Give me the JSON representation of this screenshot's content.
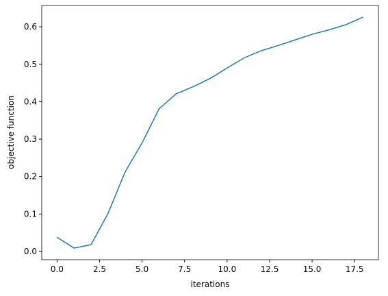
{
  "chart_data": {
    "type": "line",
    "xlabel": "iterations",
    "ylabel": "objective function",
    "x": [
      0,
      1,
      2,
      3,
      4,
      5,
      6,
      7,
      8,
      9,
      10,
      11,
      12,
      13,
      14,
      15,
      16,
      17,
      18
    ],
    "series": [
      {
        "color": "#1f77b4",
        "values": [
          0.038,
          0.009,
          0.018,
          0.102,
          0.212,
          0.29,
          0.381,
          0.421,
          0.44,
          0.462,
          0.49,
          0.517,
          0.536,
          0.55,
          0.565,
          0.58,
          0.592,
          0.606,
          0.626
        ]
      }
    ],
    "xlim": [
      -0.9,
      18.9
    ],
    "xticks": [
      {
        "value": 0,
        "label": "0.0"
      },
      2.5,
      {
        "value": 5,
        "label": "5.0"
      },
      7.5,
      {
        "value": 10,
        "label": "10.0"
      },
      12.5,
      {
        "value": 15,
        "label": "15.0"
      },
      17.5
    ],
    "ylim": [
      -0.022,
      0.657
    ],
    "yticks": [
      {
        "value": 0,
        "label": "0.0"
      },
      0.1,
      0.2,
      0.3,
      0.4,
      0.5,
      0.6
    ]
  }
}
